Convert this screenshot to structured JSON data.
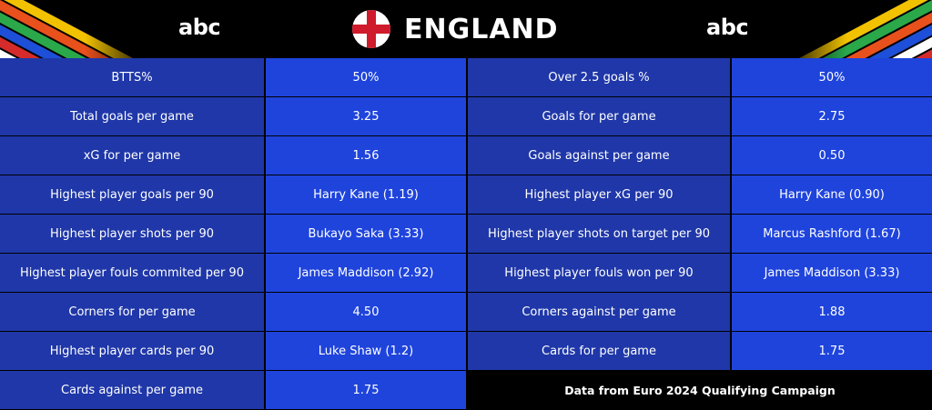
{
  "header": {
    "title": "ENGLAND",
    "logo_left": "abc",
    "logo_right": "abc",
    "flag": "england-flag-icon",
    "decoration": "euro-2024-stripes-icon"
  },
  "colors": {
    "label_cell": "#1f37a8",
    "value_cell": "#1f44dc",
    "background": "#000000",
    "flag_red": "#cf1b2b"
  },
  "rows": [
    {
      "label_a": "BTTS%",
      "value_a": "50%",
      "label_b": "Over 2.5 goals %",
      "value_b": "50%"
    },
    {
      "label_a": "Total goals per game",
      "value_a": "3.25",
      "label_b": "Goals for per game",
      "value_b": "2.75"
    },
    {
      "label_a": "xG for per game",
      "value_a": "1.56",
      "label_b": "Goals against per game",
      "value_b": "0.50"
    },
    {
      "label_a": "Highest player goals per 90",
      "value_a": "Harry Kane (1.19)",
      "label_b": "Highest player xG per 90",
      "value_b": "Harry Kane (0.90)"
    },
    {
      "label_a": "Highest player shots per 90",
      "value_a": "Bukayo Saka (3.33)",
      "label_b": "Highest player shots on target per 90",
      "value_b": "Marcus Rashford (1.67)"
    },
    {
      "label_a": "Highest player fouls commited per 90",
      "value_a": "James Maddison (2.92)",
      "label_b": "Highest player fouls won per 90",
      "value_b": "James Maddison (3.33)"
    },
    {
      "label_a": "Corners for per game",
      "value_a": "4.50",
      "label_b": "Corners against per game",
      "value_b": "1.88"
    },
    {
      "label_a": "Highest player cards per 90",
      "value_a": "Luke Shaw (1.2)",
      "label_b": "Cards for per game",
      "value_b": "1.75"
    },
    {
      "label_a": "Cards against per game",
      "value_a": "1.75",
      "note": "Data from Euro 2024 Qualifying Campaign"
    }
  ]
}
